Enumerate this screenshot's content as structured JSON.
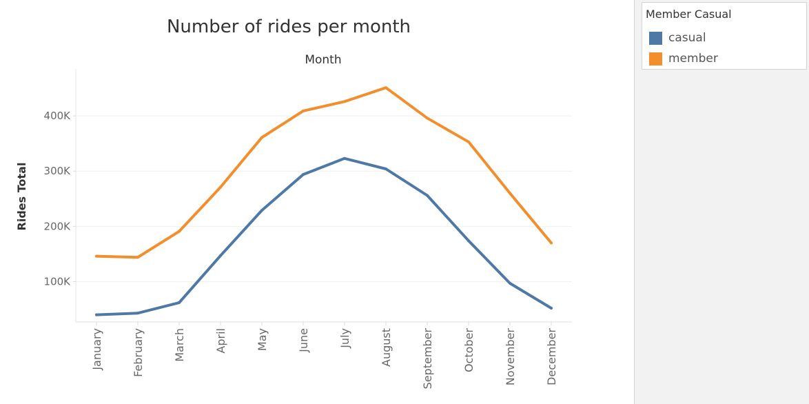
{
  "chart_data": {
    "type": "line",
    "title": "Number of rides per month",
    "column_header": "Month",
    "xlabel": "",
    "ylabel": "Rides Total",
    "categories": [
      "January",
      "February",
      "March",
      "April",
      "May",
      "June",
      "July",
      "August",
      "September",
      "October",
      "November",
      "December"
    ],
    "yticks": [
      100000,
      200000,
      300000,
      400000
    ],
    "ytick_labels": [
      "100K",
      "200K",
      "300K",
      "400K"
    ],
    "ylim": [
      27000,
      485000
    ],
    "grid": "horizontal",
    "legend_position": "right",
    "legend_title": "Member Casual",
    "series": [
      {
        "name": "casual",
        "color": "#4e79a7",
        "values": [
          40000,
          43000,
          62000,
          147000,
          229000,
          294000,
          323000,
          304000,
          256000,
          174000,
          97000,
          52000
        ]
      },
      {
        "name": "member",
        "color": "#f28e2b",
        "values": [
          146000,
          144000,
          191000,
          271000,
          361000,
          409000,
          426000,
          451000,
          396000,
          353000,
          260000,
          170000
        ]
      }
    ]
  }
}
